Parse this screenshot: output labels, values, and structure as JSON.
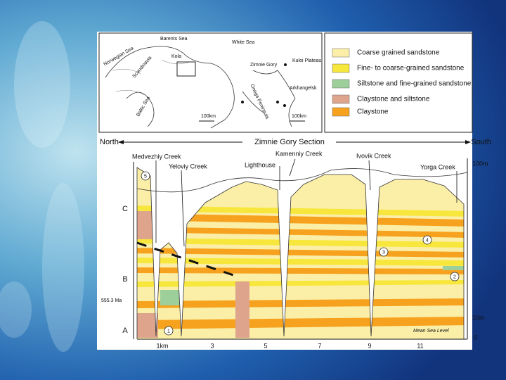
{
  "map": {
    "labels": [
      "Barents Sea",
      "White Sea",
      "Norwegian Sea",
      "Scandinavia",
      "Kola",
      "Zimnie Gory",
      "Kuloi Plateau",
      "Arkhangelsk",
      "Onega Peninsula",
      "Baltic Sea",
      "100km",
      "100km"
    ]
  },
  "legend": {
    "items": [
      {
        "label": "Coarse grained sandstone",
        "color": "#fbefa8"
      },
      {
        "label": "Fine- to coarse-grained sandstone",
        "color": "#f7e63c"
      },
      {
        "label": "Siltstone and fine-grained sandstone",
        "color": "#9ccf9a"
      },
      {
        "label": "Claystone and siltstone",
        "color": "#dea48c"
      },
      {
        "label": "Claystone",
        "color": "#f6a21e"
      }
    ]
  },
  "section": {
    "north": "North",
    "title": "Zimnie Gory Section",
    "south": "South",
    "creeks": [
      "Medvezhiy Creek",
      "Yeloviy Creek",
      "Lighthouse",
      "Kamenniy Creek",
      "Ivovik Creek",
      "Yorga Creek"
    ],
    "units": [
      "C",
      "B",
      "A"
    ],
    "age": "555.3 Ma",
    "depth": [
      "100m",
      "10m",
      "0"
    ],
    "distance": [
      "1km",
      "3",
      "5",
      "7",
      "9",
      "11"
    ],
    "sea_level": "Mean Sea Level",
    "markers": [
      "1",
      "2",
      "3",
      "4",
      "5"
    ]
  }
}
